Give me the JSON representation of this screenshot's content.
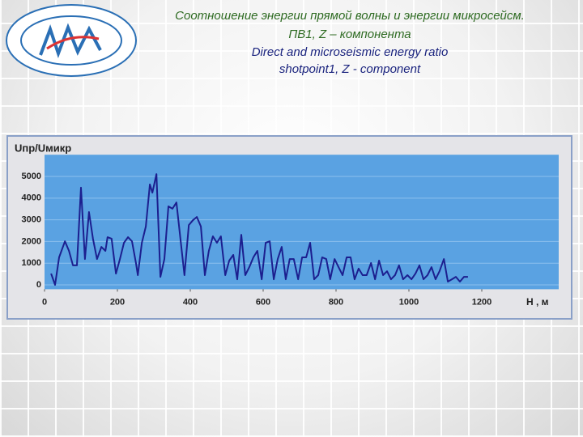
{
  "chart_data": {
    "type": "line",
    "title_lines": [
      "Соотношение энергии прямой волны и энергии микросейсм.",
      "ПВ1, Z – компонента",
      "Direct and microseismic energy ratio",
      "shotpoint1, Z - component"
    ],
    "y_label": "Uпр/Uмикр",
    "x_label": "H , м",
    "x": [
      18,
      29,
      40,
      56,
      67,
      78,
      89,
      100,
      111,
      122,
      133,
      144,
      156,
      167,
      173,
      184,
      196,
      207,
      218,
      229,
      240,
      251,
      256,
      267,
      278,
      289,
      296,
      307,
      318,
      329,
      340,
      351,
      362,
      373,
      384,
      396,
      407,
      418,
      429,
      440,
      451,
      462,
      473,
      484,
      496,
      507,
      518,
      529,
      540,
      551,
      562,
      573,
      584,
      596,
      607,
      618,
      629,
      640,
      651,
      662,
      673,
      684,
      696,
      707,
      718,
      729,
      740,
      751,
      762,
      773,
      784,
      796,
      807,
      818,
      829,
      840,
      851,
      862,
      873,
      884,
      896,
      907,
      918,
      929,
      940,
      951,
      962,
      973,
      984,
      996,
      1007,
      1018,
      1029,
      1040,
      1051,
      1062,
      1073,
      1084,
      1096,
      1107,
      1118,
      1129,
      1140,
      1151,
      1162
    ],
    "series": [
      {
        "color": "#1c1f8f",
        "values": [
          520,
          0,
          1270,
          2010,
          1570,
          900,
          900,
          4480,
          1190,
          3360,
          2130,
          1190,
          1750,
          1570,
          2200,
          2130,
          520,
          1190,
          1940,
          2200,
          2010,
          1010,
          450,
          1940,
          2690,
          4630,
          4250,
          5110,
          370,
          1190,
          3620,
          3510,
          3800,
          2130,
          450,
          2760,
          2980,
          3130,
          2690,
          450,
          1570,
          2240,
          1940,
          2240,
          450,
          1120,
          1380,
          260,
          2310,
          450,
          820,
          1270,
          1570,
          260,
          1940,
          2010,
          260,
          1190,
          1750,
          260,
          1190,
          1190,
          260,
          1270,
          1270,
          1940,
          260,
          450,
          1270,
          1190,
          260,
          1190,
          820,
          450,
          1270,
          1270,
          260,
          750,
          450,
          450,
          1010,
          260,
          1120,
          450,
          630,
          260,
          450,
          900,
          260,
          450,
          260,
          520,
          900,
          260,
          450,
          820,
          260,
          630,
          1190,
          150,
          260,
          370,
          150,
          370,
          370
        ]
      }
    ],
    "xlim": [
      0,
      1400
    ],
    "xticks": [
      0,
      200,
      400,
      600,
      800,
      1000,
      1200
    ],
    "ylim": [
      -200,
      6000
    ],
    "yticks": [
      0,
      1000,
      2000,
      3000,
      4000,
      5000
    ],
    "grid": true,
    "plot_color": "#5aa2e2"
  }
}
